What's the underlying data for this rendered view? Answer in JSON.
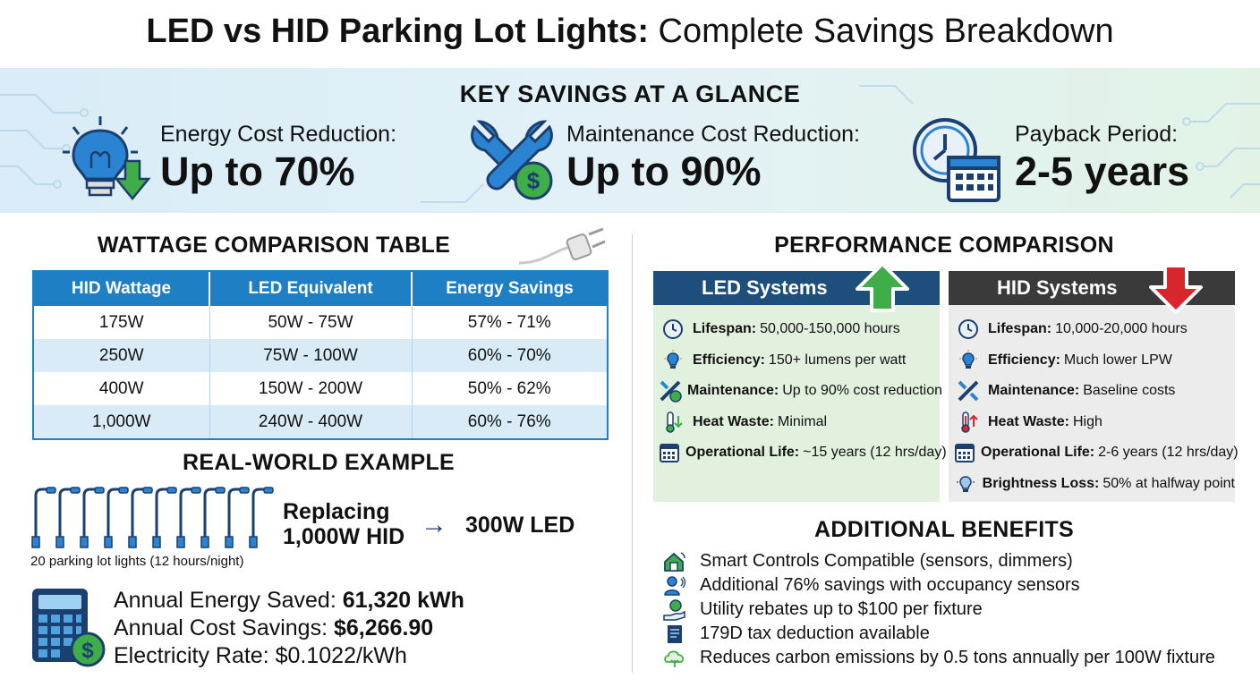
{
  "title": {
    "bold": "LED vs HID Parking Lot Lights:",
    "rest": "Complete Savings Breakdown"
  },
  "banner": {
    "title": "KEY SAVINGS AT A GLANCE",
    "metrics": [
      {
        "label": "Energy Cost Reduction:",
        "value": "Up to 70%",
        "icon": "lightbulb-down-arrow-icon"
      },
      {
        "label": "Maintenance Cost Reduction:",
        "value": "Up to 90%",
        "icon": "wrench-dollar-icon"
      },
      {
        "label": "Payback Period:",
        "value": "2-5 years",
        "icon": "clock-calendar-icon"
      }
    ]
  },
  "wattage": {
    "title": "WATTAGE COMPARISON TABLE",
    "headers": [
      "HID Wattage",
      "LED Equivalent",
      "Energy Savings"
    ],
    "rows": [
      [
        "175W",
        "50W - 75W",
        "57% - 71%"
      ],
      [
        "250W",
        "75W - 100W",
        "60% - 70%"
      ],
      [
        "400W",
        "150W - 200W",
        "50% - 62%"
      ],
      [
        "1,000W",
        "240W - 400W",
        "60% - 76%"
      ]
    ]
  },
  "example": {
    "title": "REAL-WORLD EXAMPLE",
    "replacing_line1": "Replacing",
    "replacing_line2": "1,000W HID",
    "arrow": "→",
    "target": "300W LED",
    "caption": "20 parking lot lights (12 hours/night)",
    "lines": [
      {
        "label": "Annual Energy Saved: ",
        "value": "61,320 kWh"
      },
      {
        "label": "Annual Cost Savings: ",
        "value": "$6,266.90"
      },
      {
        "label": "Electricity Rate: $0.1022/kWh",
        "value": ""
      }
    ]
  },
  "performance": {
    "title": "PERFORMANCE COMPARISON",
    "led": {
      "header": "LED Systems",
      "rows": [
        {
          "label": "Lifespan:",
          "value": "50,000-150,000 hours",
          "icon": "clock-icon"
        },
        {
          "label": "Efficiency:",
          "value": "150+ lumens per watt",
          "icon": "bulb-icon"
        },
        {
          "label": "Maintenance:",
          "value": "Up to 90% cost reduction",
          "icon": "tools-icon"
        },
        {
          "label": "Heat Waste:",
          "value": "Minimal",
          "icon": "thermometer-icon"
        },
        {
          "label": "Operational Life:",
          "value": "~15 years (12 hrs/day)",
          "icon": "calendar-icon"
        }
      ]
    },
    "hid": {
      "header": "HID Systems",
      "rows": [
        {
          "label": "Lifespan:",
          "value": "10,000-20,000 hours",
          "icon": "clock-icon"
        },
        {
          "label": "Efficiency:",
          "value": "Much lower LPW",
          "icon": "bulb-icon"
        },
        {
          "label": "Maintenance:",
          "value": "Baseline costs",
          "icon": "tools-icon"
        },
        {
          "label": "Heat Waste:",
          "value": "High",
          "icon": "thermometer-icon"
        },
        {
          "label": "Operational Life:",
          "value": "2-6 years (12 hrs/day)",
          "icon": "calendar-icon"
        },
        {
          "label": "Brightness Loss:",
          "value": "50% at halfway point",
          "icon": "dim-bulb-icon"
        }
      ]
    }
  },
  "benefits": {
    "title": "ADDITIONAL BENEFITS",
    "items": [
      {
        "text": "Smart Controls Compatible (sensors, dimmers)",
        "icon": "smart-home-icon"
      },
      {
        "text": "Additional 76% savings with occupancy sensors",
        "icon": "occupancy-sensor-icon"
      },
      {
        "text": "Utility rebates up to $100 per fixture",
        "icon": "rebate-hand-icon"
      },
      {
        "text": "179D tax deduction available",
        "icon": "tax-document-icon"
      },
      {
        "text": "Reduces carbon emissions by 0.5 tons annually per 100W fixture",
        "icon": "co2-leaf-icon"
      }
    ]
  },
  "colors": {
    "blue": "#1f7fc4",
    "navy": "#1b3f6e",
    "led_header": "#1e4f7c",
    "hid_header": "#3a3a3a",
    "green": "#3fae49",
    "red": "#d8262d",
    "led_bg": "#e2f1de",
    "hid_bg": "#ececec"
  }
}
